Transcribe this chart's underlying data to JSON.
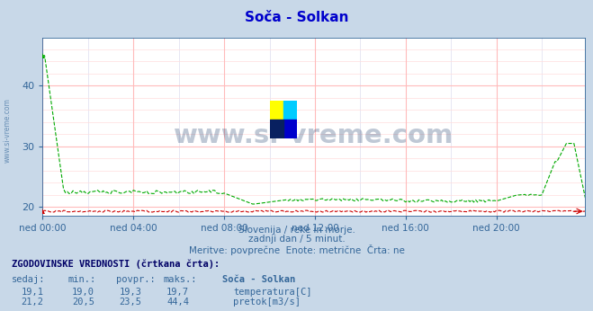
{
  "title": "Soča - Solkan",
  "title_color": "#0000cc",
  "bg_color": "#c8d8e8",
  "plot_bg_color": "#ffffff",
  "xlabel_color": "#336699",
  "ylabel_values": [
    20,
    30,
    40
  ],
  "ylim": [
    18.5,
    48.0
  ],
  "xlim": [
    0,
    287
  ],
  "xtick_labels": [
    "ned 00:00",
    "ned 04:00",
    "ned 08:00",
    "ned 12:00",
    "ned 16:00",
    "ned 20:00"
  ],
  "xtick_positions": [
    0,
    48,
    96,
    144,
    192,
    240
  ],
  "watermark": "www.si-vreme.com",
  "watermark_color": "#1a3a6a",
  "watermark_alpha": 0.28,
  "subtitle1": "Slovenija / reke in morje.",
  "subtitle2": "zadnji dan / 5 minut.",
  "subtitle3": "Meritve: povprečne  Enote: metrične  Črta: ne",
  "footer_title": "ZGODOVINSKE VREDNOSTI (črtkana črta):",
  "col_headers": [
    "sedaj:",
    "min.:",
    "povpr.:",
    "maks.:",
    "Soča - Solkan"
  ],
  "row1": [
    "19,1",
    "19,0",
    "19,3",
    "19,7",
    "temperatura[C]"
  ],
  "row2": [
    "21,2",
    "20,5",
    "23,5",
    "44,4",
    "pretok[m3/s]"
  ],
  "temp_color": "#cc0000",
  "flow_color": "#00aa00",
  "axis_label_color": "#336699",
  "text_color": "#336699",
  "footer_header_color": "#000066",
  "minor_grid_color": "#ffdddd",
  "major_grid_color": "#ffbbbb",
  "minor_vgrid_color": "#ddddee",
  "major_vgrid_color": "#ffbbbb"
}
